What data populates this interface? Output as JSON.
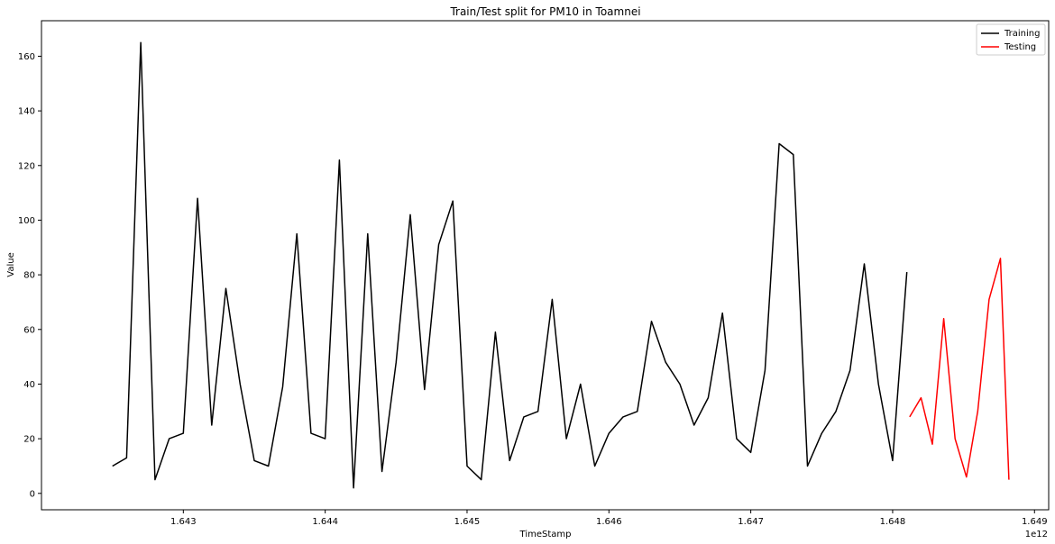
{
  "chart_data": {
    "type": "line",
    "title": "Train/Test split for PM10 in Toamnei",
    "xlabel": "TimeStamp",
    "ylabel": "Value",
    "x_offset_label": "1e12",
    "xlim": [
      1.642,
      1.6491
    ],
    "ylim": [
      -6,
      173
    ],
    "x_ticks": [
      1.643,
      1.644,
      1.645,
      1.646,
      1.647,
      1.648,
      1.649
    ],
    "x_tick_labels": [
      "1.643",
      "1.644",
      "1.645",
      "1.646",
      "1.647",
      "1.648",
      "1.649"
    ],
    "y_ticks": [
      0,
      20,
      40,
      60,
      80,
      100,
      120,
      140,
      160
    ],
    "y_tick_labels": [
      "0",
      "20",
      "40",
      "60",
      "80",
      "100",
      "120",
      "140",
      "160"
    ],
    "grid": false,
    "legend_position": "top-right",
    "series": [
      {
        "name": "Training",
        "color": "#000000",
        "x": [
          1.6425,
          1.6426,
          1.6427,
          1.6428,
          1.6429,
          1.643,
          1.6431,
          1.6432,
          1.6433,
          1.6434,
          1.6435,
          1.6436,
          1.6437,
          1.6438,
          1.6439,
          1.644,
          1.6441,
          1.6442,
          1.6443,
          1.6444,
          1.6445,
          1.6446,
          1.6447,
          1.6448,
          1.6449,
          1.645,
          1.6451,
          1.6452,
          1.6453,
          1.6454,
          1.6455,
          1.6456,
          1.6457,
          1.6458,
          1.6459,
          1.646,
          1.6461,
          1.6462,
          1.6463,
          1.6464,
          1.6465,
          1.6466,
          1.6467,
          1.6468,
          1.6469,
          1.647,
          1.6471,
          1.6472,
          1.6473,
          1.6474,
          1.6475,
          1.6476,
          1.6477,
          1.6478,
          1.6479,
          1.648,
          1.6481
        ],
        "values": [
          10,
          13,
          165,
          5,
          20,
          22,
          108,
          25,
          75,
          40,
          12,
          10,
          39,
          95,
          22,
          20,
          122,
          2,
          95,
          8,
          48,
          102,
          38,
          91,
          107,
          10,
          5,
          59,
          12,
          28,
          30,
          71,
          20,
          40,
          10,
          22,
          28,
          30,
          63,
          48,
          40,
          25,
          35,
          66,
          20,
          15,
          45,
          128,
          124,
          10,
          22,
          30,
          45,
          84,
          40,
          12,
          81
        ]
      },
      {
        "name": "Testing",
        "color": "#ff0000",
        "x": [
          1.64812,
          1.6482,
          1.64828,
          1.64836,
          1.64844,
          1.64852,
          1.6486,
          1.64868,
          1.64876,
          1.64882
        ],
        "values": [
          28,
          35,
          18,
          64,
          20,
          6,
          30,
          71,
          86,
          5
        ]
      }
    ]
  }
}
